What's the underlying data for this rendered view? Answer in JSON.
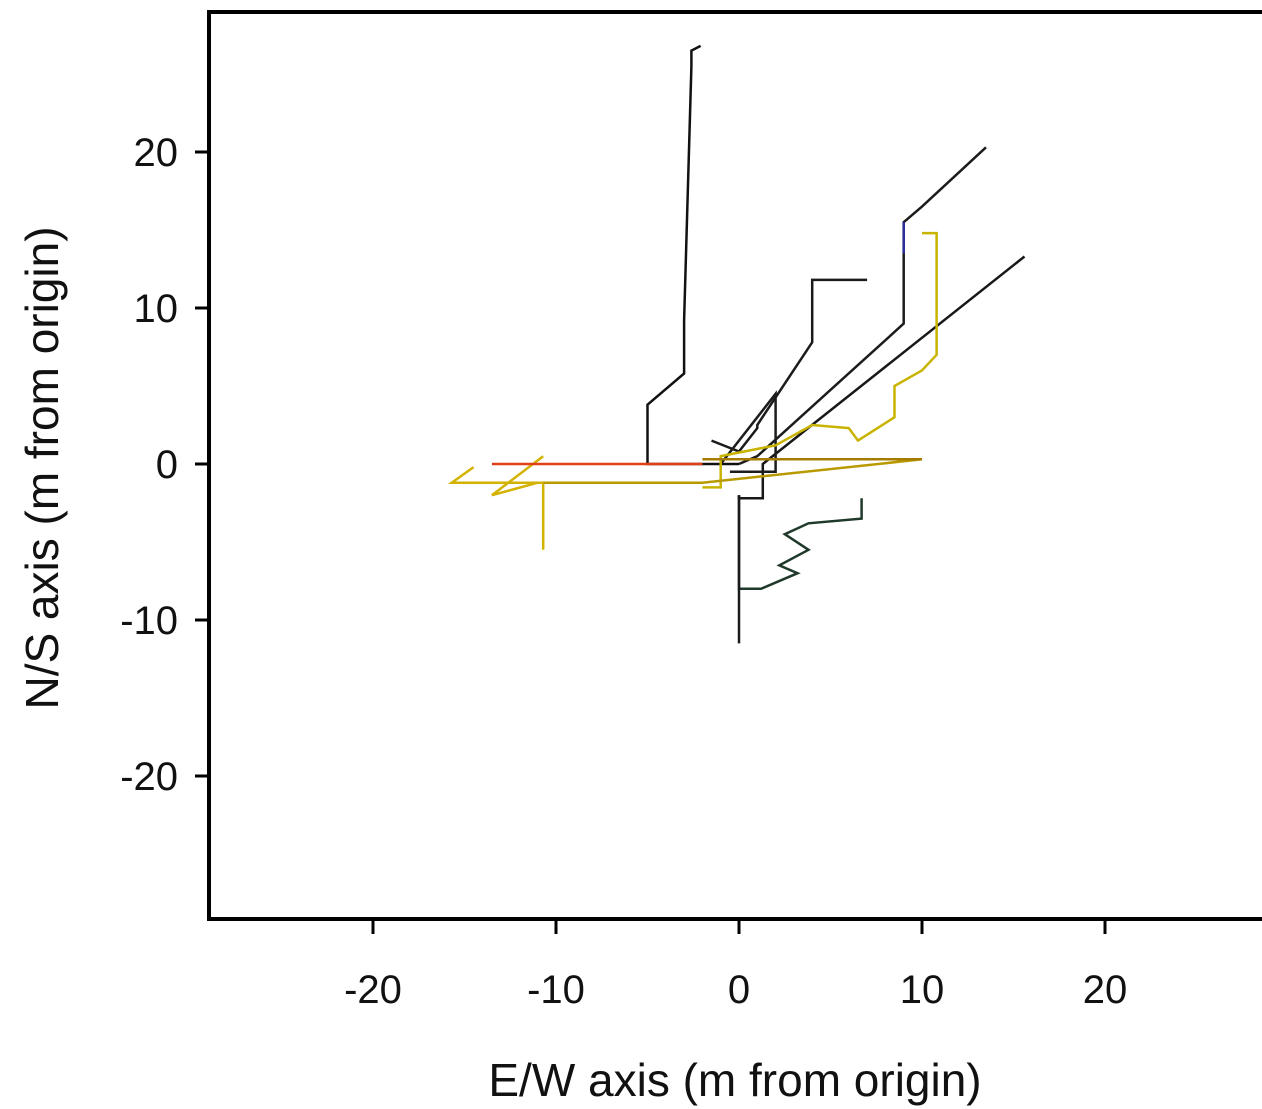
{
  "chart_data": {
    "type": "line",
    "title": "",
    "xlabel": "E/W axis (m from origin)",
    "ylabel": "N/S axis (m from origin)",
    "xlim": [
      -29,
      29
    ],
    "ylim": [
      -29,
      29
    ],
    "x_ticks": [
      -20,
      -10,
      0,
      10,
      20
    ],
    "y_ticks": [
      20,
      10,
      0,
      -10,
      -20
    ],
    "x_tick_labels": [
      "-20",
      "-10",
      "0",
      "10",
      "20"
    ],
    "y_tick_labels": [
      "20",
      "10",
      "0",
      "-10",
      "-20"
    ],
    "grid": false,
    "legend": "none",
    "series": [
      {
        "color": "#111111",
        "x": [
          0,
          -5,
          -5,
          -3,
          -3,
          -2.6,
          -2.6,
          -2.1
        ],
        "y": [
          0,
          0,
          3.8,
          5.8,
          9.2,
          25.5,
          26.5,
          26.8
        ]
      },
      {
        "color": "#1a1a1a",
        "x": [
          -1.5,
          0,
          1,
          1,
          4,
          4,
          7
        ],
        "y": [
          1.5,
          0.8,
          2.3,
          2.5,
          7.8,
          11.8,
          11.8
        ]
      },
      {
        "color": "#1c1c1c",
        "x": [
          0,
          1,
          9,
          9,
          10,
          13.5
        ],
        "y": [
          0,
          0.5,
          9,
          15.5,
          16.5,
          20.3
        ]
      },
      {
        "color": "#181818",
        "x": [
          0,
          0,
          1.3,
          1.3,
          15.6
        ],
        "y": [
          -2,
          -2.2,
          -2.2,
          0,
          13.3
        ]
      },
      {
        "color": "#1d1d1d",
        "x": [
          -1,
          2,
          2,
          -0.5
        ],
        "y": [
          0,
          4.5,
          -0.5,
          -0.5
        ]
      },
      {
        "color": "#1f3a2a",
        "x": [
          0,
          0,
          1.2,
          3.2,
          2.2,
          3.8,
          2.5,
          3.8,
          6.7,
          6.7
        ],
        "y": [
          -2,
          -8,
          -8,
          -7,
          -6.5,
          -5.5,
          -4.5,
          -3.8,
          -3.5,
          -2.2
        ]
      },
      {
        "color": "#1a1a1a",
        "x": [
          0,
          0
        ],
        "y": [
          -2,
          -11.5
        ]
      },
      {
        "color": "#c8b400",
        "x": [
          -2,
          -1,
          -1,
          2,
          4,
          6,
          6.5,
          8.5,
          8.5,
          10,
          10.8,
          10.8,
          10
        ],
        "y": [
          -1.5,
          -1.5,
          0.5,
          1.2,
          2.5,
          2.3,
          1.5,
          3,
          5,
          6,
          7,
          14.8,
          14.8
        ]
      },
      {
        "color": "#d4b200",
        "x": [
          -10.7,
          -10.7,
          -15.7,
          -14.5,
          -15.7,
          -11,
          -13.5,
          -10.7
        ],
        "y": [
          -5.5,
          -1.2,
          -1.2,
          -0.2,
          -1.2,
          -1.2,
          -2,
          0.5
        ]
      },
      {
        "color": "#b89a00",
        "x": [
          -10.7,
          -2,
          10
        ],
        "y": [
          -1.2,
          -1.2,
          0.3
        ]
      },
      {
        "color": "#e0401a",
        "x": [
          -13.5,
          -2
        ],
        "y": [
          0,
          0
        ]
      },
      {
        "color": "#a67c00",
        "x": [
          -2,
          10
        ],
        "y": [
          0.3,
          0.3
        ]
      },
      {
        "color": "#2a2f9a",
        "x": [
          9,
          9
        ],
        "y": [
          13.5,
          15.5
        ]
      }
    ]
  }
}
